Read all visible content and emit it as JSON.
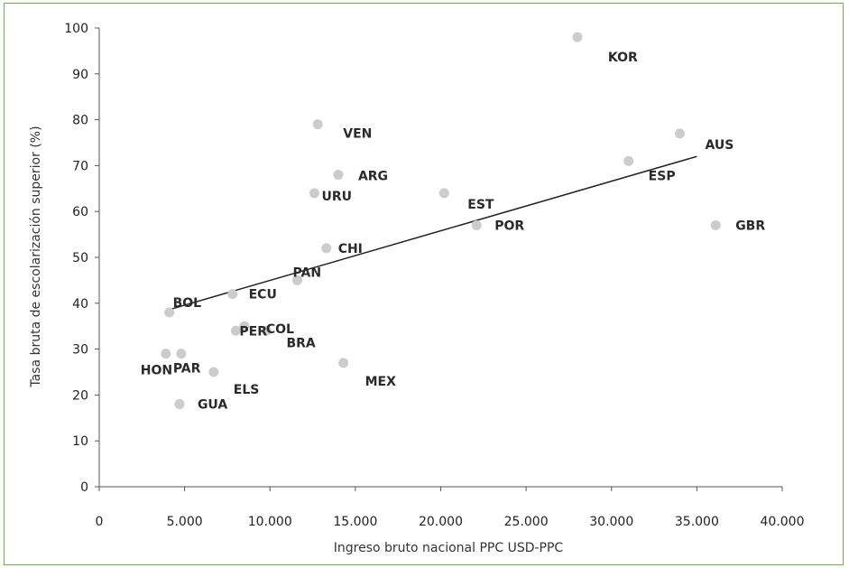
{
  "chart_data": {
    "type": "scatter",
    "xlabel": "Ingreso bruto nacional PPC USD-PPC",
    "ylabel": "Tasa bruta de escolarización superior (%)",
    "xlim": [
      0,
      40000
    ],
    "ylim": [
      0,
      100
    ],
    "x_ticks": [
      "0",
      "5.000",
      "10.000",
      "15.000",
      "20.000",
      "25.000",
      "30.000",
      "35.000",
      "40.000"
    ],
    "y_ticks": [
      "0",
      "10",
      "20",
      "30",
      "40",
      "50",
      "60",
      "70",
      "80",
      "90",
      "100"
    ],
    "grid": false,
    "marker_color": "#cccccc",
    "trendline_color": "#222222",
    "trendline": {
      "x": [
        4000,
        35000
      ],
      "y": [
        38.5,
        72
      ]
    },
    "points": [
      {
        "label": "KOR",
        "x": 28000,
        "y": 98
      },
      {
        "label": "VEN",
        "x": 12800,
        "y": 79
      },
      {
        "label": "AUS",
        "x": 34000,
        "y": 77
      },
      {
        "label": "ESP",
        "x": 31000,
        "y": 71
      },
      {
        "label": "ARG",
        "x": 14000,
        "y": 68
      },
      {
        "label": "URU",
        "x": 12600,
        "y": 64
      },
      {
        "label": "EST",
        "x": 20200,
        "y": 64
      },
      {
        "label": "POR",
        "x": 22100,
        "y": 57
      },
      {
        "label": "GBR",
        "x": 36100,
        "y": 57
      },
      {
        "label": "CHI",
        "x": 13300,
        "y": 52
      },
      {
        "label": "PAN",
        "x": 11600,
        "y": 45
      },
      {
        "label": "ECU",
        "x": 7800,
        "y": 42
      },
      {
        "label": "BOL",
        "x": 4100,
        "y": 38
      },
      {
        "label": "COL",
        "x": 8500,
        "y": 35
      },
      {
        "label": "BRA",
        "x": 9800,
        "y": 34
      },
      {
        "label": "PER",
        "x": 8000,
        "y": 34
      },
      {
        "label": "HON",
        "x": 3900,
        "y": 29
      },
      {
        "label": "PAR",
        "x": 4800,
        "y": 29
      },
      {
        "label": "MEX",
        "x": 14300,
        "y": 27
      },
      {
        "label": "ELS",
        "x": 6700,
        "y": 25
      },
      {
        "label": "GUA",
        "x": 4700,
        "y": 18
      }
    ]
  }
}
